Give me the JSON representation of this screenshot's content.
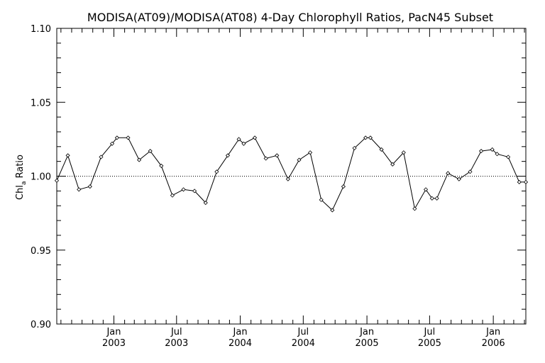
{
  "chart_data": {
    "type": "line",
    "title": "MODISA(AT09)/MODISA(AT08) 4-Day Chlorophyll Ratios, PacN45 Subset",
    "ylabel": {
      "main": "Chl",
      "sub": "a",
      "rest": " Ratio"
    },
    "ylim": [
      0.9,
      1.1
    ],
    "xlim": [
      "2002-07-20",
      "2006-04-05"
    ],
    "yticks": [
      {
        "value": 0.9,
        "label": "0.90"
      },
      {
        "value": 0.95,
        "label": "0.95"
      },
      {
        "value": 1.0,
        "label": "1.00"
      },
      {
        "value": 1.05,
        "label": "1.05"
      },
      {
        "value": 1.1,
        "label": "1.10"
      }
    ],
    "xticks": [
      {
        "date": "2003-01-01",
        "month": "Jan",
        "year": "2003"
      },
      {
        "date": "2003-07-01",
        "month": "Jul",
        "year": "2003"
      },
      {
        "date": "2004-01-01",
        "month": "Jan",
        "year": "2004"
      },
      {
        "date": "2004-07-01",
        "month": "Jul",
        "year": "2004"
      },
      {
        "date": "2005-01-01",
        "month": "Jan",
        "year": "2005"
      },
      {
        "date": "2005-07-01",
        "month": "Jul",
        "year": "2005"
      },
      {
        "date": "2006-01-01",
        "month": "Jan",
        "year": "2006"
      }
    ],
    "reference_line": 1.0,
    "series": [
      {
        "x": [
          "2002-07-20",
          "2002-08-21",
          "2002-09-22",
          "2002-10-24",
          "2002-11-25",
          "2002-12-27",
          "2003-01-10",
          "2003-02-11",
          "2003-03-15",
          "2003-04-16",
          "2003-05-18",
          "2003-06-19",
          "2003-07-21",
          "2003-08-22",
          "2003-09-23",
          "2003-10-25",
          "2003-11-26",
          "2003-12-28",
          "2004-01-11",
          "2004-02-12",
          "2004-03-15",
          "2004-04-16",
          "2004-05-18",
          "2004-06-19",
          "2004-07-21",
          "2004-08-22",
          "2004-09-23",
          "2004-10-25",
          "2004-11-26",
          "2004-12-28",
          "2005-01-11",
          "2005-02-12",
          "2005-03-16",
          "2005-04-17",
          "2005-05-19",
          "2005-06-20",
          "2005-07-08",
          "2005-07-22",
          "2005-08-23",
          "2005-09-24",
          "2005-10-26",
          "2005-11-27",
          "2005-12-29",
          "2006-01-12",
          "2006-02-13",
          "2006-03-17",
          "2006-04-05"
        ],
        "y": [
          0.997,
          1.014,
          0.991,
          0.993,
          1.013,
          1.022,
          1.026,
          1.026,
          1.011,
          1.017,
          1.007,
          0.987,
          0.991,
          0.99,
          0.982,
          1.003,
          1.014,
          1.025,
          1.022,
          1.026,
          1.012,
          1.014,
          0.998,
          1.011,
          1.016,
          0.984,
          0.977,
          0.993,
          1.019,
          1.026,
          1.026,
          1.018,
          1.008,
          1.016,
          0.978,
          0.991,
          0.985,
          0.985,
          1.002,
          0.998,
          1.003,
          1.017,
          1.018,
          1.015,
          1.013,
          0.996,
          0.996
        ]
      }
    ],
    "grid": false,
    "marker": "diamond",
    "line_color": "#000000"
  }
}
